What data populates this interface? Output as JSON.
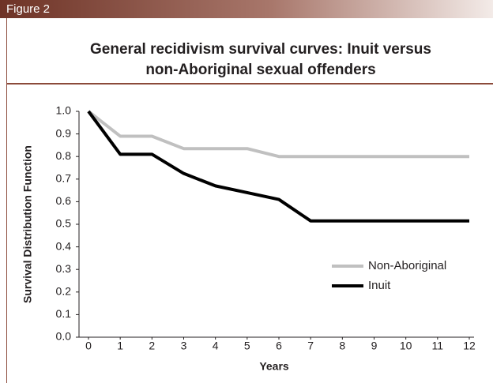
{
  "figure_label": "Figure 2",
  "chart_data": {
    "type": "line",
    "title": "General recidivism survival curves: Inuit versus",
    "subtitle": "non-Aboriginal sexual offenders",
    "xlabel": "Years",
    "ylabel": "Survival Distribution Function",
    "x": [
      0,
      1,
      2,
      3,
      4,
      5,
      6,
      7,
      8,
      9,
      10,
      11,
      12
    ],
    "series": [
      {
        "name": "Non-Aboriginal",
        "color": "#c0c0c0",
        "values": [
          1.0,
          0.89,
          0.89,
          0.835,
          0.835,
          0.835,
          0.8,
          0.8,
          0.8,
          0.8,
          0.8,
          0.8,
          0.8
        ]
      },
      {
        "name": "Inuit",
        "color": "#000000",
        "values": [
          1.0,
          0.81,
          0.81,
          0.725,
          0.67,
          0.64,
          0.61,
          0.515,
          0.515,
          0.515,
          0.515,
          0.515,
          0.515
        ]
      }
    ],
    "xlim": [
      0,
      12
    ],
    "xticks": [
      0,
      1,
      2,
      3,
      4,
      5,
      6,
      7,
      8,
      9,
      10,
      11,
      12
    ],
    "ylim": [
      0,
      1
    ],
    "yticks": [
      {
        "value": 0,
        "label": "0.0"
      },
      {
        "value": 0.1,
        "label": "0.1"
      },
      {
        "value": 0.2,
        "label": "0.2"
      },
      {
        "value": 0.3,
        "label": "0.3"
      },
      {
        "value": 0.4,
        "label": "0.4"
      },
      {
        "value": 0.5,
        "label": "0.5"
      },
      {
        "value": 0.6,
        "label": "0.6"
      },
      {
        "value": 0.7,
        "label": "0.7"
      },
      {
        "value": 0.8,
        "label": "0.8"
      },
      {
        "value": 0.9,
        "label": "0.9"
      },
      {
        "value": 1,
        "label": "1.0"
      }
    ],
    "legend": "lower right",
    "grid": false
  }
}
